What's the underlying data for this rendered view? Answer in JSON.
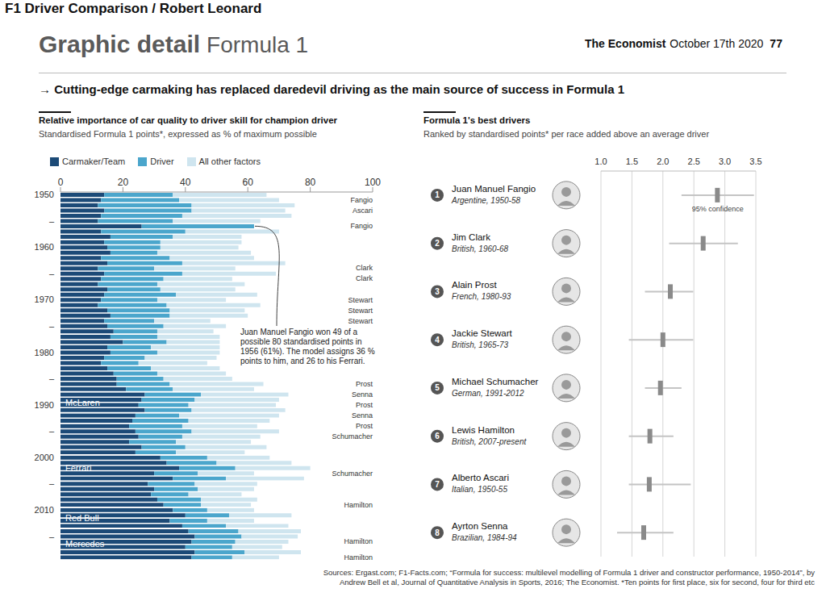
{
  "page": {
    "label": "F1 Driver Comparison / Robert Leonard",
    "section": "Graphic detail",
    "topic": "Formula 1",
    "publication": "The Economist",
    "date": "October 17th 2020",
    "page_number": "77",
    "headline": "→ Cutting-edge carmaking has replaced daredevil driving as the main source of success in Formula 1",
    "sources": [
      "Sources: Ergast.com; F1-Facts.com; “Formula for success: multilevel modelling of Formula 1 driver and constructor performance, 1950-2014”, by",
      "Andrew Bell et al, Journal of Quantitative Analysis in Sports, 2016; The Economist. *Ten points for first place, six for second, four for third etc"
    ]
  },
  "chart_data": [
    {
      "type": "bar",
      "orientation": "horizontal",
      "stacked": true,
      "grid": false,
      "legend": "top-left",
      "title": "Relative importance of car quality to driver skill for champion driver",
      "subtitle": "Standardised Formula 1 points*, expressed as % of maximum possible",
      "categories": [
        "1950",
        null,
        null,
        null,
        null,
        "–",
        null,
        null,
        null,
        null,
        "1960",
        null,
        null,
        null,
        null,
        "–",
        null,
        null,
        null,
        null,
        "1970",
        null,
        null,
        null,
        null,
        "–",
        null,
        null,
        null,
        null,
        "1980",
        null,
        null,
        null,
        null,
        "–",
        null,
        null,
        null,
        null,
        "1990",
        null,
        null,
        null,
        null,
        "–",
        null,
        null,
        null,
        null,
        "2000",
        null,
        null,
        null,
        null,
        "–",
        null,
        null,
        null,
        null,
        "2010",
        null,
        null,
        null,
        null,
        "–",
        null,
        null,
        null,
        null
      ],
      "series": [
        {
          "name": "Carmaker/Team",
          "color": "#1c4a77",
          "values": [
            14,
            13,
            12,
            14,
            13,
            12,
            26,
            13,
            16,
            14,
            15,
            16,
            13,
            15,
            12,
            14,
            13,
            12,
            15,
            14,
            13,
            12,
            15,
            16,
            14,
            15,
            17,
            16,
            20,
            15,
            16,
            14,
            13,
            15,
            17,
            18,
            18,
            21,
            27,
            26,
            25,
            27,
            24,
            23,
            22,
            24,
            25,
            22,
            26,
            24,
            32,
            34,
            38,
            30,
            36,
            28,
            30,
            29,
            31,
            33,
            36,
            40,
            35,
            39,
            41,
            43,
            42,
            40,
            43,
            42
          ]
        },
        {
          "name": "Driver",
          "color": "#4ba6cc",
          "values": [
            22,
            25,
            30,
            28,
            26,
            24,
            36,
            27,
            20,
            18,
            17,
            15,
            22,
            24,
            18,
            25,
            20,
            19,
            17,
            23,
            18,
            22,
            20,
            19,
            16,
            18,
            14,
            15,
            14,
            14,
            15,
            13,
            12,
            14,
            14,
            15,
            17,
            15,
            18,
            17,
            16,
            15,
            14,
            18,
            17,
            18,
            14,
            15,
            14,
            13,
            15,
            16,
            18,
            14,
            17,
            15,
            14,
            12,
            14,
            12,
            11,
            14,
            12,
            14,
            16,
            15,
            14,
            15,
            16,
            13
          ]
        },
        {
          "name": "All other factors",
          "color": "#cfe5ef",
          "values": [
            30,
            32,
            33,
            30,
            35,
            28,
            0,
            30,
            22,
            26,
            25,
            30,
            27,
            33,
            26,
            30,
            22,
            28,
            24,
            26,
            22,
            30,
            24,
            25,
            18,
            20,
            18,
            20,
            17,
            22,
            20,
            23,
            22,
            22,
            22,
            22,
            30,
            26,
            28,
            27,
            28,
            30,
            32,
            26,
            24,
            28,
            25,
            24,
            26,
            22,
            20,
            24,
            24,
            18,
            25,
            20,
            18,
            17,
            18,
            16,
            15,
            20,
            15,
            20,
            20,
            18,
            17,
            16,
            18,
            15
          ]
        }
      ],
      "champions": [
        null,
        "Fangio",
        null,
        "Ascari",
        null,
        null,
        "Fangio",
        null,
        null,
        null,
        null,
        null,
        null,
        null,
        "Clark",
        null,
        "Clark",
        null,
        null,
        null,
        "Stewart",
        null,
        "Stewart",
        null,
        "Stewart",
        null,
        null,
        null,
        null,
        null,
        null,
        null,
        null,
        null,
        null,
        null,
        "Prost",
        null,
        "Senna",
        null,
        "Prost",
        null,
        "Senna",
        null,
        "Prost",
        null,
        "Schumacher",
        null,
        null,
        null,
        null,
        null,
        null,
        "Schumacher",
        null,
        null,
        null,
        null,
        null,
        "Hamilton",
        null,
        null,
        null,
        null,
        null,
        null,
        "Hamilton",
        null,
        null,
        "Hamilton"
      ],
      "teams": [
        null,
        null,
        null,
        null,
        null,
        null,
        null,
        null,
        null,
        null,
        null,
        null,
        null,
        null,
        null,
        null,
        null,
        null,
        null,
        null,
        null,
        null,
        null,
        null,
        null,
        null,
        null,
        null,
        null,
        null,
        null,
        null,
        null,
        null,
        null,
        null,
        null,
        null,
        "McLaren",
        "McLaren",
        "McLaren",
        "McLaren",
        null,
        null,
        null,
        null,
        null,
        null,
        null,
        null,
        "Ferrari",
        "Ferrari",
        "Ferrari",
        "Ferrari",
        "Ferrari",
        null,
        null,
        null,
        null,
        null,
        "Red Bull",
        "Red Bull",
        "Red Bull",
        "Red Bull",
        "Mercedes",
        "Mercedes",
        "Mercedes",
        "Mercedes",
        "Mercedes",
        "Mercedes"
      ],
      "xlim": [
        0,
        100
      ],
      "xticks": [
        0,
        20,
        40,
        60,
        80,
        100
      ],
      "annotation": {
        "text": "Juan Manuel Fangio won 49 of a possible 80 standardised points in 1956 (61%). The model assigns 36 % points to him, and 26 to his Ferrari.",
        "at": 6
      }
    },
    {
      "type": "dot",
      "grid": true,
      "title": "Formula 1's best drivers",
      "subtitle": "Ranked by standardised points* per race added above an average driver",
      "categories": [
        "Juan Manuel Fangio",
        "Jim Clark",
        "Alain Prost",
        "Jackie Stewart",
        "Michael Schumacher",
        "Lewis Hamilton",
        "Alberto Ascari",
        "Ayrton Senna"
      ],
      "ranks": [
        1,
        2,
        3,
        4,
        5,
        6,
        7,
        8
      ],
      "details": [
        "Argentine, 1950-58",
        "British, 1960-68",
        "French, 1980-93",
        "British, 1965-73",
        "German, 1991-2012",
        "British, 2007-present",
        "Italian, 1950-55",
        "Brazilian, 1984-94"
      ],
      "values": [
        2.88,
        2.65,
        2.12,
        2.0,
        1.96,
        1.79,
        1.78,
        1.69
      ],
      "ci": [
        [
          2.3,
          3.47
        ],
        [
          2.1,
          3.21
        ],
        [
          1.71,
          2.49
        ],
        [
          1.45,
          2.49
        ],
        [
          1.71,
          2.3
        ],
        [
          1.45,
          2.17
        ],
        [
          1.45,
          2.45
        ],
        [
          1.26,
          2.17
        ]
      ],
      "ci_label": "95% confidence",
      "color": "#8a8a8a",
      "xlim": [
        1,
        3.5
      ],
      "xticks": [
        {
          "value": 1,
          "label": "1.0"
        },
        1.5,
        {
          "value": 2,
          "label": "2.0"
        },
        2.5,
        {
          "value": 3,
          "label": "3.0"
        },
        3.5
      ]
    }
  ]
}
